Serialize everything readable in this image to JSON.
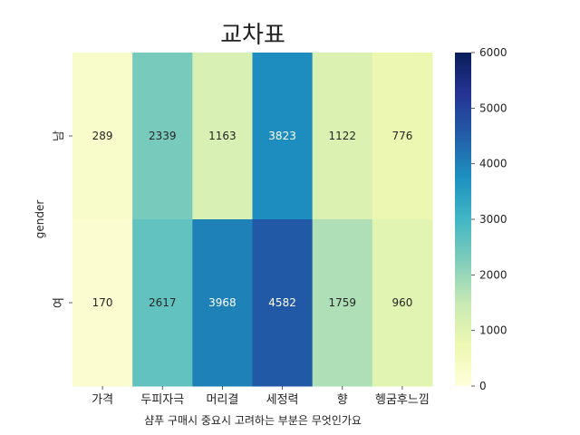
{
  "chart_data": {
    "type": "heatmap",
    "title": "교차표",
    "xlabel": "샴푸 구매시 중요시 고려하는 부분은 무엇인가요",
    "ylabel": "gender",
    "x_categories": [
      "가격",
      "두피자극",
      "머리결",
      "세정력",
      "향",
      "헹굼후느낌"
    ],
    "y_categories": [
      "남",
      "여"
    ],
    "values": [
      [
        289,
        2339,
        1163,
        3823,
        1122,
        776
      ],
      [
        170,
        2617,
        3968,
        4582,
        1759,
        960
      ]
    ],
    "colorbar": {
      "range": [
        0,
        6000
      ],
      "ticks": [
        0,
        1000,
        2000,
        3000,
        4000,
        5000,
        6000
      ],
      "colormap": "YlGnBu",
      "colors": [
        "#ffffd9",
        "#edf8b1",
        "#c7e9b4",
        "#7fcdbb",
        "#41b6c4",
        "#1d91c0",
        "#225ea8",
        "#253494",
        "#081d58"
      ]
    },
    "grid": false
  }
}
